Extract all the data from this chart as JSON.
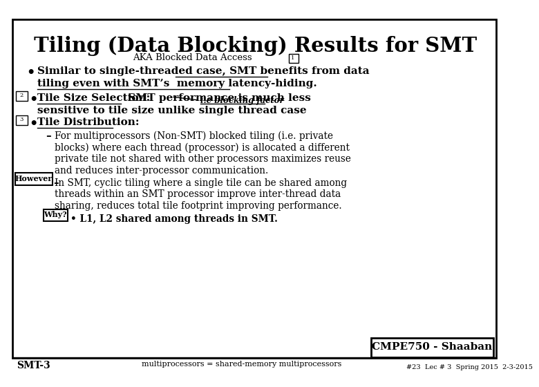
{
  "title": "Tiling (Data Blocking) Results for SMT",
  "subtitle": "AKA Blocked Data Access",
  "bg_color": "#ffffff",
  "border_color": "#000000",
  "text_color": "#000000",
  "footer_left": "SMT-3",
  "footer_mid": "multiprocessors = shared-memory multiprocessors",
  "footer_box": "CMPE750 - Shaaban",
  "footer_small": "#23  Lec # 3  Spring 2015  2-3-2015"
}
